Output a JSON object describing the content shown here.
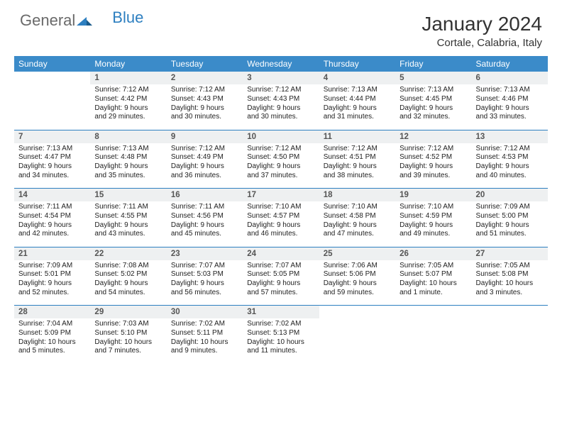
{
  "brand": {
    "part1": "General",
    "part2": "Blue"
  },
  "title": "January 2024",
  "location": "Cortale, Calabria, Italy",
  "colors": {
    "header_bg": "#3b8bc9",
    "header_text": "#ffffff",
    "daynum_bg": "#eef0f1",
    "week_border": "#2d7fc0",
    "body_bg": "#ffffff",
    "text": "#222222",
    "logo_gray": "#6a6a6a",
    "logo_blue": "#2d7fc0"
  },
  "weekdays": [
    "Sunday",
    "Monday",
    "Tuesday",
    "Wednesday",
    "Thursday",
    "Friday",
    "Saturday"
  ],
  "weeks": [
    [
      null,
      {
        "n": "1",
        "sr": "Sunrise: 7:12 AM",
        "ss": "Sunset: 4:42 PM",
        "d1": "Daylight: 9 hours",
        "d2": "and 29 minutes."
      },
      {
        "n": "2",
        "sr": "Sunrise: 7:12 AM",
        "ss": "Sunset: 4:43 PM",
        "d1": "Daylight: 9 hours",
        "d2": "and 30 minutes."
      },
      {
        "n": "3",
        "sr": "Sunrise: 7:12 AM",
        "ss": "Sunset: 4:43 PM",
        "d1": "Daylight: 9 hours",
        "d2": "and 30 minutes."
      },
      {
        "n": "4",
        "sr": "Sunrise: 7:13 AM",
        "ss": "Sunset: 4:44 PM",
        "d1": "Daylight: 9 hours",
        "d2": "and 31 minutes."
      },
      {
        "n": "5",
        "sr": "Sunrise: 7:13 AM",
        "ss": "Sunset: 4:45 PM",
        "d1": "Daylight: 9 hours",
        "d2": "and 32 minutes."
      },
      {
        "n": "6",
        "sr": "Sunrise: 7:13 AM",
        "ss": "Sunset: 4:46 PM",
        "d1": "Daylight: 9 hours",
        "d2": "and 33 minutes."
      }
    ],
    [
      {
        "n": "7",
        "sr": "Sunrise: 7:13 AM",
        "ss": "Sunset: 4:47 PM",
        "d1": "Daylight: 9 hours",
        "d2": "and 34 minutes."
      },
      {
        "n": "8",
        "sr": "Sunrise: 7:13 AM",
        "ss": "Sunset: 4:48 PM",
        "d1": "Daylight: 9 hours",
        "d2": "and 35 minutes."
      },
      {
        "n": "9",
        "sr": "Sunrise: 7:12 AM",
        "ss": "Sunset: 4:49 PM",
        "d1": "Daylight: 9 hours",
        "d2": "and 36 minutes."
      },
      {
        "n": "10",
        "sr": "Sunrise: 7:12 AM",
        "ss": "Sunset: 4:50 PM",
        "d1": "Daylight: 9 hours",
        "d2": "and 37 minutes."
      },
      {
        "n": "11",
        "sr": "Sunrise: 7:12 AM",
        "ss": "Sunset: 4:51 PM",
        "d1": "Daylight: 9 hours",
        "d2": "and 38 minutes."
      },
      {
        "n": "12",
        "sr": "Sunrise: 7:12 AM",
        "ss": "Sunset: 4:52 PM",
        "d1": "Daylight: 9 hours",
        "d2": "and 39 minutes."
      },
      {
        "n": "13",
        "sr": "Sunrise: 7:12 AM",
        "ss": "Sunset: 4:53 PM",
        "d1": "Daylight: 9 hours",
        "d2": "and 40 minutes."
      }
    ],
    [
      {
        "n": "14",
        "sr": "Sunrise: 7:11 AM",
        "ss": "Sunset: 4:54 PM",
        "d1": "Daylight: 9 hours",
        "d2": "and 42 minutes."
      },
      {
        "n": "15",
        "sr": "Sunrise: 7:11 AM",
        "ss": "Sunset: 4:55 PM",
        "d1": "Daylight: 9 hours",
        "d2": "and 43 minutes."
      },
      {
        "n": "16",
        "sr": "Sunrise: 7:11 AM",
        "ss": "Sunset: 4:56 PM",
        "d1": "Daylight: 9 hours",
        "d2": "and 45 minutes."
      },
      {
        "n": "17",
        "sr": "Sunrise: 7:10 AM",
        "ss": "Sunset: 4:57 PM",
        "d1": "Daylight: 9 hours",
        "d2": "and 46 minutes."
      },
      {
        "n": "18",
        "sr": "Sunrise: 7:10 AM",
        "ss": "Sunset: 4:58 PM",
        "d1": "Daylight: 9 hours",
        "d2": "and 47 minutes."
      },
      {
        "n": "19",
        "sr": "Sunrise: 7:10 AM",
        "ss": "Sunset: 4:59 PM",
        "d1": "Daylight: 9 hours",
        "d2": "and 49 minutes."
      },
      {
        "n": "20",
        "sr": "Sunrise: 7:09 AM",
        "ss": "Sunset: 5:00 PM",
        "d1": "Daylight: 9 hours",
        "d2": "and 51 minutes."
      }
    ],
    [
      {
        "n": "21",
        "sr": "Sunrise: 7:09 AM",
        "ss": "Sunset: 5:01 PM",
        "d1": "Daylight: 9 hours",
        "d2": "and 52 minutes."
      },
      {
        "n": "22",
        "sr": "Sunrise: 7:08 AM",
        "ss": "Sunset: 5:02 PM",
        "d1": "Daylight: 9 hours",
        "d2": "and 54 minutes."
      },
      {
        "n": "23",
        "sr": "Sunrise: 7:07 AM",
        "ss": "Sunset: 5:03 PM",
        "d1": "Daylight: 9 hours",
        "d2": "and 56 minutes."
      },
      {
        "n": "24",
        "sr": "Sunrise: 7:07 AM",
        "ss": "Sunset: 5:05 PM",
        "d1": "Daylight: 9 hours",
        "d2": "and 57 minutes."
      },
      {
        "n": "25",
        "sr": "Sunrise: 7:06 AM",
        "ss": "Sunset: 5:06 PM",
        "d1": "Daylight: 9 hours",
        "d2": "and 59 minutes."
      },
      {
        "n": "26",
        "sr": "Sunrise: 7:05 AM",
        "ss": "Sunset: 5:07 PM",
        "d1": "Daylight: 10 hours",
        "d2": "and 1 minute."
      },
      {
        "n": "27",
        "sr": "Sunrise: 7:05 AM",
        "ss": "Sunset: 5:08 PM",
        "d1": "Daylight: 10 hours",
        "d2": "and 3 minutes."
      }
    ],
    [
      {
        "n": "28",
        "sr": "Sunrise: 7:04 AM",
        "ss": "Sunset: 5:09 PM",
        "d1": "Daylight: 10 hours",
        "d2": "and 5 minutes."
      },
      {
        "n": "29",
        "sr": "Sunrise: 7:03 AM",
        "ss": "Sunset: 5:10 PM",
        "d1": "Daylight: 10 hours",
        "d2": "and 7 minutes."
      },
      {
        "n": "30",
        "sr": "Sunrise: 7:02 AM",
        "ss": "Sunset: 5:11 PM",
        "d1": "Daylight: 10 hours",
        "d2": "and 9 minutes."
      },
      {
        "n": "31",
        "sr": "Sunrise: 7:02 AM",
        "ss": "Sunset: 5:13 PM",
        "d1": "Daylight: 10 hours",
        "d2": "and 11 minutes."
      },
      null,
      null,
      null
    ]
  ]
}
